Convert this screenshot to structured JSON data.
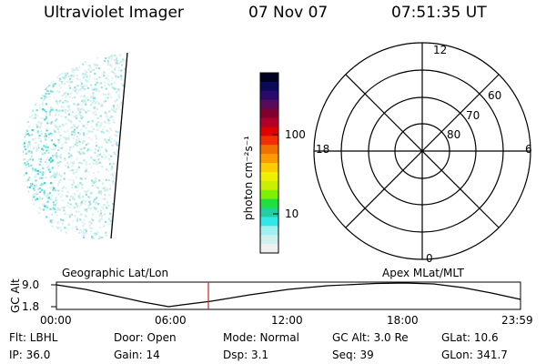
{
  "header": {
    "title": "Ultraviolet Imager",
    "date": "07 Nov 07",
    "time": "07:51:35 UT"
  },
  "colorbar": {
    "label": "photon cm⁻²s⁻¹",
    "ticks": [
      "100",
      "10"
    ],
    "colors": [
      "#000020",
      "#0a0a5a",
      "#2a0a6a",
      "#5a0a5a",
      "#800030",
      "#b0002a",
      "#e00000",
      "#f03000",
      "#f07000",
      "#ff9a00",
      "#ffcc00",
      "#f0f000",
      "#c8f000",
      "#80f000",
      "#20e040",
      "#20d0a0",
      "#30e8e8",
      "#a0f0f0",
      "#d0f0f0",
      "#f0f0f0"
    ]
  },
  "polar": {
    "mlt_labels": {
      "top": "12",
      "left": "18",
      "right": "6",
      "bottom": "0"
    },
    "lat_labels": [
      "60",
      "70",
      "80"
    ]
  },
  "altitude": {
    "axis_label": "GC Alt",
    "y_ticks": [
      "9.0",
      "1.8"
    ],
    "left_title": "Geographic Lat/Lon",
    "right_title": "Apex MLat/MLT",
    "x_ticks": [
      "00:00",
      "06:00",
      "12:00",
      "18:00",
      "23:59"
    ],
    "current_time_hours": 7.86
  },
  "status": {
    "row1": [
      {
        "name": "Flt",
        "text": "Flt: LBHL"
      },
      {
        "name": "Door",
        "text": "Door: Open"
      },
      {
        "name": "Mode",
        "text": "Mode: Normal"
      },
      {
        "name": "GCAlt",
        "text": "GC Alt: 3.0 Re"
      },
      {
        "name": "GLat",
        "text": "GLat:  10.6"
      }
    ],
    "row2": [
      {
        "name": "IP",
        "text": "IP: 36.0"
      },
      {
        "name": "Gain",
        "text": "Gain: 14"
      },
      {
        "name": "Dsp",
        "text": "Dsp:     3.1"
      },
      {
        "name": "Seq",
        "text": "Seq: 39"
      },
      {
        "name": "GLon",
        "text": "GLon: 341.7"
      }
    ]
  }
}
